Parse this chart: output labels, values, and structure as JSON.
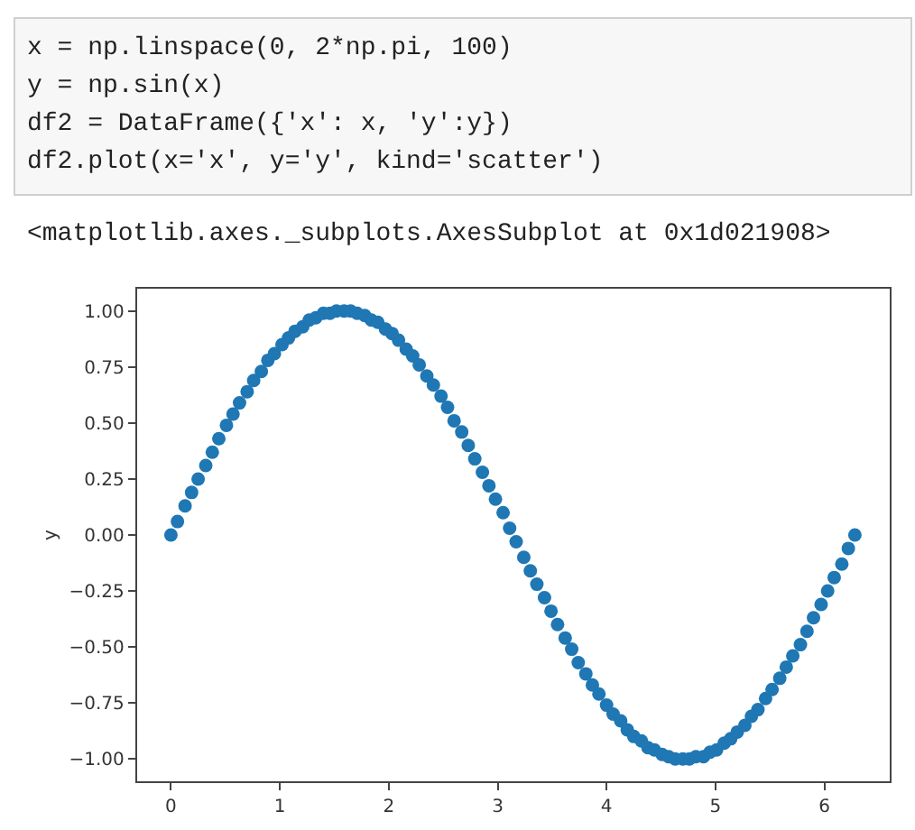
{
  "chart_data": {
    "type": "scatter",
    "ylabel": "y",
    "annotations": [
      "x = np.linspace(0, 2*np.pi, 100)",
      "y = np.sin(x)",
      "df2 = DataFrame({'x': x, 'y':y})",
      "df2.plot(x='x', y='y', kind='scatter')",
      "<matplotlib.axes._subplots.AxesSubplot at 0x1d021908>"
    ],
    "x": [
      0,
      0.06,
      0.13,
      0.19,
      0.25,
      0.32,
      0.38,
      0.44,
      0.51,
      0.57,
      0.63,
      0.7,
      0.76,
      0.83,
      0.89,
      0.95,
      1.02,
      1.08,
      1.14,
      1.21,
      1.27,
      1.33,
      1.4,
      1.46,
      1.52,
      1.59,
      1.65,
      1.71,
      1.78,
      1.84,
      1.9,
      1.97,
      2.03,
      2.09,
      2.16,
      2.22,
      2.28,
      2.35,
      2.41,
      2.48,
      2.54,
      2.6,
      2.67,
      2.73,
      2.79,
      2.86,
      2.92,
      2.98,
      3.05,
      3.11,
      3.17,
      3.24,
      3.3,
      3.36,
      3.43,
      3.49,
      3.55,
      3.62,
      3.68,
      3.74,
      3.81,
      3.87,
      3.93,
      4.0,
      4.06,
      4.13,
      4.19,
      4.25,
      4.32,
      4.38,
      4.44,
      4.51,
      4.57,
      4.63,
      4.7,
      4.76,
      4.82,
      4.89,
      4.95,
      5.01,
      5.08,
      5.14,
      5.2,
      5.27,
      5.33,
      5.39,
      5.46,
      5.52,
      5.59,
      5.65,
      5.71,
      5.78,
      5.84,
      5.9,
      5.97,
      6.03,
      6.09,
      6.16,
      6.22,
      6.28
    ],
    "series": [
      {
        "color": "#1f77b4",
        "values": [
          0,
          0.06,
          0.13,
          0.19,
          0.25,
          0.31,
          0.37,
          0.43,
          0.49,
          0.54,
          0.59,
          0.64,
          0.69,
          0.73,
          0.78,
          0.81,
          0.85,
          0.88,
          0.91,
          0.93,
          0.96,
          0.97,
          0.99,
          0.99,
          1.0,
          1.0,
          1.0,
          0.99,
          0.98,
          0.96,
          0.95,
          0.92,
          0.9,
          0.87,
          0.83,
          0.8,
          0.76,
          0.71,
          0.67,
          0.62,
          0.57,
          0.51,
          0.46,
          0.4,
          0.34,
          0.28,
          0.22,
          0.16,
          0.1,
          0.03,
          -0.03,
          -0.1,
          -0.16,
          -0.22,
          -0.28,
          -0.34,
          -0.4,
          -0.46,
          -0.51,
          -0.57,
          -0.62,
          -0.67,
          -0.71,
          -0.76,
          -0.8,
          -0.83,
          -0.87,
          -0.9,
          -0.92,
          -0.95,
          -0.96,
          -0.98,
          -0.99,
          -1.0,
          -1.0,
          -1.0,
          -0.99,
          -0.99,
          -0.97,
          -0.96,
          -0.93,
          -0.91,
          -0.88,
          -0.85,
          -0.81,
          -0.78,
          -0.73,
          -0.69,
          -0.64,
          -0.59,
          -0.54,
          -0.49,
          -0.43,
          -0.37,
          -0.31,
          -0.25,
          -0.19,
          -0.13,
          -0.06,
          0
        ]
      }
    ],
    "xlim": [
      -0.31,
      6.6
    ],
    "ylim": [
      -1.1,
      1.1
    ],
    "xticks": [
      0,
      1,
      2,
      3,
      4,
      5,
      6
    ],
    "yticks": [
      {
        "value": 1,
        "label": "1.00"
      },
      {
        "value": 0.75,
        "label": "0.75"
      },
      {
        "value": 0.5,
        "label": "0.50"
      },
      {
        "value": 0.25,
        "label": "0.25"
      },
      {
        "value": 0,
        "label": "0.00"
      },
      {
        "value": -0.25,
        "label": "−0.25"
      },
      {
        "value": -0.5,
        "label": "−0.50"
      },
      {
        "value": -0.75,
        "label": "−0.75"
      },
      {
        "value": -1,
        "label": "−1.00"
      }
    ],
    "marker": "circle"
  }
}
